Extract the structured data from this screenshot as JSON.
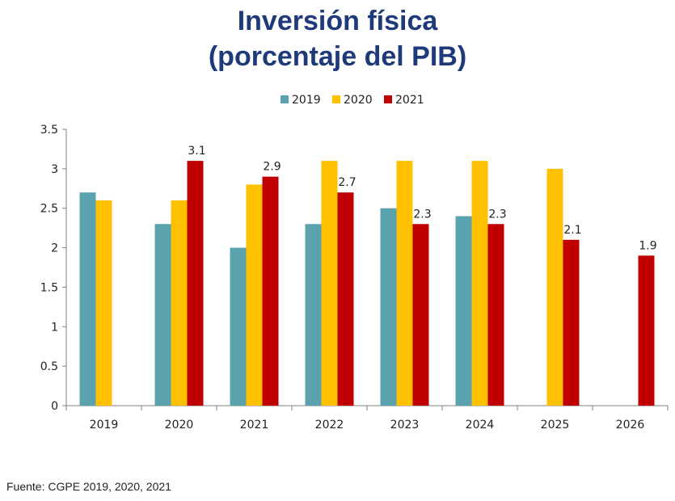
{
  "chart_data": {
    "type": "bar",
    "title": "Inversión física",
    "subtitle": "(porcentaje del PIB)",
    "categories": [
      "2019",
      "2020",
      "2021",
      "2022",
      "2023",
      "2024",
      "2025",
      "2026"
    ],
    "series": [
      {
        "name": "2019",
        "color": "#5aa3ae",
        "values": [
          2.7,
          2.3,
          2.0,
          2.3,
          2.5,
          2.4,
          null,
          null
        ]
      },
      {
        "name": "2020",
        "color": "#ffc000",
        "values": [
          2.6,
          2.6,
          2.8,
          3.1,
          3.1,
          3.1,
          3.0,
          null
        ]
      },
      {
        "name": "2021",
        "color": "#c00000",
        "values": [
          null,
          3.1,
          2.9,
          2.7,
          2.3,
          2.3,
          2.1,
          1.9
        ]
      }
    ],
    "data_labels_series": "2021",
    "ylim": [
      0,
      3.5
    ],
    "yticks": [
      "0",
      "0.5",
      "1",
      "1.5",
      "2",
      "2.5",
      "3",
      "3.5"
    ],
    "xlabel": "",
    "ylabel": "",
    "grid": false,
    "legend_position": "top"
  },
  "source": "Fuente: CGPE 2019, 2020, 2021"
}
